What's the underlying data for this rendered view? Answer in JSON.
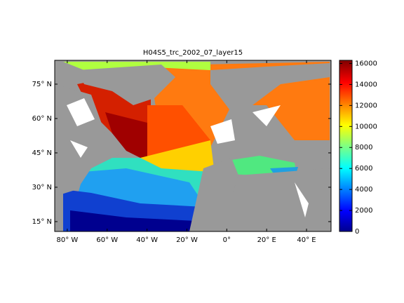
{
  "chart_data": {
    "type": "map",
    "title": "H04S5_trc_2002_07_layer15",
    "xlim": [
      -86.3,
      52.3
    ],
    "ylim": [
      10.7,
      85.4
    ],
    "xticks": [
      {
        "value": -80,
        "label": "80° W"
      },
      {
        "value": -60,
        "label": "60° W"
      },
      {
        "value": -40,
        "label": "40° W"
      },
      {
        "value": -20,
        "label": "20° W"
      },
      {
        "value": 0,
        "label": "0°"
      },
      {
        "value": 20,
        "label": "20° E"
      },
      {
        "value": 40,
        "label": "40° E"
      }
    ],
    "yticks": [
      {
        "value": 15,
        "label": "15° N"
      },
      {
        "value": 30,
        "label": "30° N"
      },
      {
        "value": 45,
        "label": "45° N"
      },
      {
        "value": 60,
        "label": "60° N"
      },
      {
        "value": 75,
        "label": "75° N"
      }
    ],
    "colorbar": {
      "lim": [
        0,
        16300
      ],
      "ticks": [
        0,
        2000,
        4000,
        6000,
        8000,
        10000,
        12000,
        14000,
        16000
      ]
    }
  }
}
